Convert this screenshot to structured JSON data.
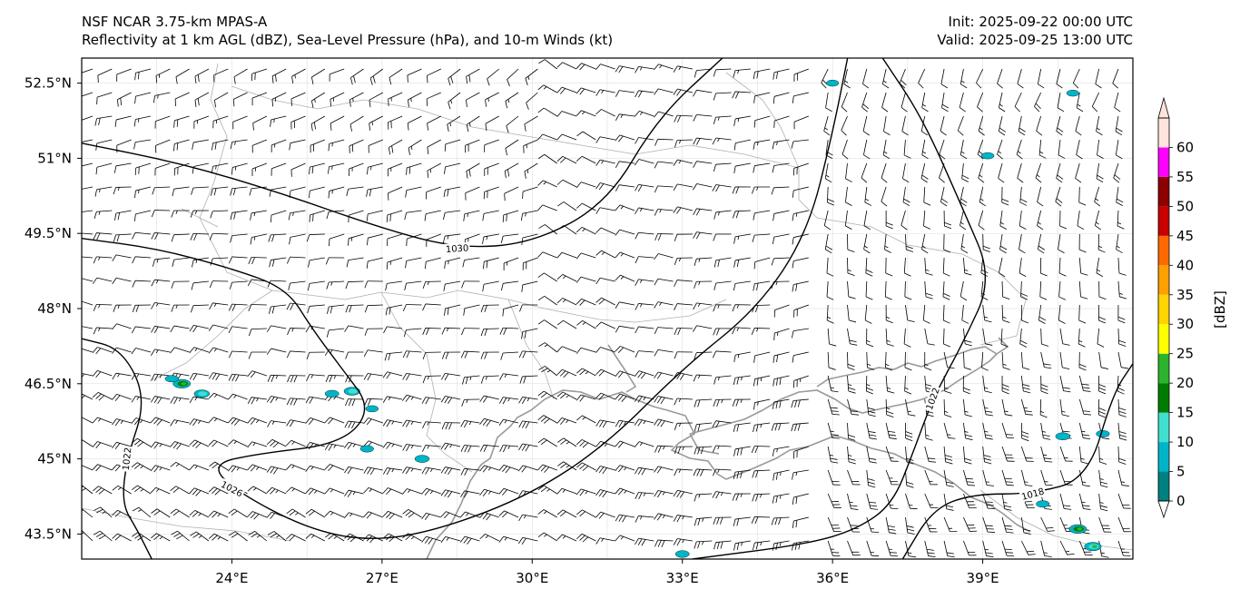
{
  "header": {
    "title_line1": "NSF NCAR 3.75-km MPAS-A",
    "title_line2": "Reflectivity at 1 km AGL (dBZ), Sea-Level Pressure (hPa), and 10-m Winds (kt)",
    "init": "Init: 2025-09-22 00:00 UTC",
    "valid": "Valid: 2025-09-25 13:00 UTC"
  },
  "chart_data": {
    "type": "heatmap",
    "map_extent": {
      "lon": [
        21,
        42
      ],
      "lat": [
        43,
        53
      ]
    },
    "x_ticks": [
      {
        "value": 24,
        "label": "24°E"
      },
      {
        "value": 27,
        "label": "27°E"
      },
      {
        "value": 30,
        "label": "30°E"
      },
      {
        "value": 33,
        "label": "33°E"
      },
      {
        "value": 36,
        "label": "36°E"
      },
      {
        "value": 39,
        "label": "39°E"
      }
    ],
    "y_ticks": [
      {
        "value": 52.5,
        "label": "52.5°N"
      },
      {
        "value": 51,
        "label": "51°N"
      },
      {
        "value": 49.5,
        "label": "49.5°N"
      },
      {
        "value": 48,
        "label": "48°N"
      },
      {
        "value": 46.5,
        "label": "46.5°N"
      },
      {
        "value": 45,
        "label": "45°N"
      },
      {
        "value": 43.5,
        "label": "43.5°N"
      }
    ],
    "colorbar": {
      "label": "[dBZ]",
      "ticks": [
        0,
        5,
        10,
        15,
        20,
        25,
        30,
        35,
        40,
        45,
        50,
        55,
        60
      ],
      "bands": [
        {
          "from": 0,
          "to": 5,
          "color": "#008080"
        },
        {
          "from": 5,
          "to": 10,
          "color": "#00b4c8"
        },
        {
          "from": 10,
          "to": 15,
          "color": "#40e0d0"
        },
        {
          "from": 15,
          "to": 20,
          "color": "#007c00"
        },
        {
          "from": 20,
          "to": 25,
          "color": "#2cb42c"
        },
        {
          "from": 25,
          "to": 30,
          "color": "#ffff00"
        },
        {
          "from": 30,
          "to": 35,
          "color": "#ffd400"
        },
        {
          "from": 35,
          "to": 40,
          "color": "#ffa000"
        },
        {
          "from": 40,
          "to": 45,
          "color": "#ff6a00"
        },
        {
          "from": 45,
          "to": 50,
          "color": "#c80000"
        },
        {
          "from": 50,
          "to": 55,
          "color": "#8c0000"
        },
        {
          "from": 55,
          "to": 60,
          "color": "#ff00ff"
        },
        {
          "from": 60,
          "to": 65,
          "color": "#ffe4dc"
        }
      ],
      "extend": "both"
    },
    "isobars": [
      {
        "value": 1030,
        "label": "1030",
        "points": [
          [
            21,
            51.3
          ],
          [
            23,
            50.9
          ],
          [
            25,
            50.3
          ],
          [
            27,
            49.6
          ],
          [
            28.5,
            49.2
          ],
          [
            30,
            49.3
          ],
          [
            31.5,
            50.1
          ],
          [
            32.5,
            51.8
          ],
          [
            33.8,
            53
          ]
        ]
      },
      {
        "value": 1026,
        "label": "1026",
        "points": [
          [
            21,
            49.4
          ],
          [
            22.5,
            49.2
          ],
          [
            24,
            48.8
          ],
          [
            25.1,
            48.4
          ],
          [
            25.6,
            47.6
          ],
          [
            26.2,
            46.8
          ],
          [
            26.8,
            46.0
          ],
          [
            26.2,
            45.3
          ],
          [
            24.5,
            45.1
          ],
          [
            23.6,
            44.9
          ],
          [
            24,
            44.4
          ],
          [
            25.5,
            43.6
          ],
          [
            26.8,
            43.35
          ],
          [
            28.2,
            43.6
          ],
          [
            30,
            44.3
          ],
          [
            31.5,
            45.3
          ],
          [
            33,
            46.8
          ],
          [
            34.5,
            48
          ],
          [
            35.5,
            49.5
          ],
          [
            36,
            51.5
          ],
          [
            36.3,
            53
          ]
        ]
      },
      {
        "value": 1022,
        "label": "1022",
        "points": [
          [
            21,
            47.4
          ],
          [
            21.8,
            47.2
          ],
          [
            22.3,
            46.2
          ],
          [
            21.9,
            45.0
          ],
          [
            21.8,
            44.1
          ],
          [
            22.1,
            43.6
          ],
          [
            22.4,
            43
          ]
        ]
      },
      {
        "value": 1022,
        "label": "1022",
        "points": [
          [
            37,
            53
          ],
          [
            37.8,
            51.8
          ],
          [
            38.6,
            50
          ],
          [
            39.2,
            48.6
          ],
          [
            38.6,
            47.3
          ],
          [
            38,
            46.2
          ],
          [
            37.6,
            45.1
          ],
          [
            37.2,
            44.1
          ],
          [
            36.5,
            43.6
          ],
          [
            35.5,
            43.3
          ],
          [
            33.2,
            43
          ]
        ]
      },
      {
        "value": 1018,
        "label": "1018",
        "points": [
          [
            37.4,
            43
          ],
          [
            38,
            44
          ],
          [
            38.8,
            44.3
          ],
          [
            40,
            44.3
          ],
          [
            41.1,
            44.6
          ],
          [
            41.6,
            46.3
          ],
          [
            42,
            46.9
          ]
        ]
      }
    ],
    "reflectivity_cells": [
      {
        "lon": 23.0,
        "lat": 46.5,
        "dbz": 22
      },
      {
        "lon": 23.4,
        "lat": 46.3,
        "dbz": 15
      },
      {
        "lon": 22.8,
        "lat": 46.6,
        "dbz": 8
      },
      {
        "lon": 26.0,
        "lat": 46.3,
        "dbz": 10
      },
      {
        "lon": 26.4,
        "lat": 46.35,
        "dbz": 17
      },
      {
        "lon": 26.8,
        "lat": 46.0,
        "dbz": 6
      },
      {
        "lon": 26.7,
        "lat": 45.2,
        "dbz": 8
      },
      {
        "lon": 27.8,
        "lat": 45.0,
        "dbz": 12
      },
      {
        "lon": 33.0,
        "lat": 43.1,
        "dbz": 10
      },
      {
        "lon": 39.1,
        "lat": 51.05,
        "dbz": 6
      },
      {
        "lon": 40.6,
        "lat": 45.45,
        "dbz": 12
      },
      {
        "lon": 41.4,
        "lat": 45.5,
        "dbz": 8
      },
      {
        "lon": 40.9,
        "lat": 43.6,
        "dbz": 22
      },
      {
        "lon": 41.2,
        "lat": 43.25,
        "dbz": 20
      },
      {
        "lon": 40.2,
        "lat": 44.1,
        "dbz": 8
      },
      {
        "lon": 36.0,
        "lat": 52.5,
        "dbz": 5
      },
      {
        "lon": 40.8,
        "lat": 52.3,
        "dbz": 5
      }
    ]
  }
}
